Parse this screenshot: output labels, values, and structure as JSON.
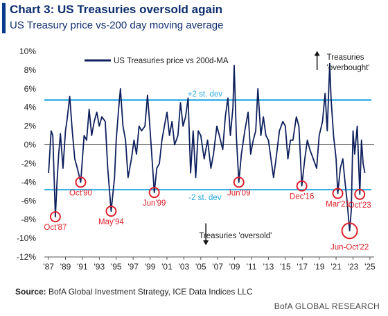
{
  "header": {
    "title": "Chart 3: US Treasuries oversold again",
    "subtitle": "US Treasury price vs-200 day moving average"
  },
  "footer": {
    "source_label": "Source:",
    "source_text": "BofA Global Investment Strategy, ICE Data Indices LLC",
    "brand": "BofA GLOBAL RESEARCH"
  },
  "colors": {
    "series": "#0d1f5c",
    "band": "#29a9e1",
    "marker": "#e0202a",
    "zero": "#333333"
  },
  "chart_data": {
    "type": "line",
    "xlabel": "",
    "ylabel": "",
    "xlim": [
      1986.5,
      2025.5
    ],
    "ylim": [
      -12,
      10
    ],
    "y_ticks": [
      10,
      8,
      6,
      4,
      2,
      0,
      -2,
      -4,
      -6,
      -8,
      -10,
      -12
    ],
    "y_tick_labels": [
      "10%",
      "8%",
      "6%",
      "4%",
      "2%",
      "0%",
      "-2%",
      "-4%",
      "-6%",
      "-8%",
      "-10%",
      "-12%"
    ],
    "x_ticks": [
      1987,
      1989,
      1991,
      1993,
      1995,
      1997,
      1999,
      2001,
      2003,
      2005,
      2007,
      2009,
      2011,
      2013,
      2015,
      2017,
      2019,
      2021,
      2023,
      2025
    ],
    "x_tick_labels": [
      "'87",
      "'89",
      "'91",
      "'93",
      "'95",
      "'97",
      "'99",
      "'01",
      "'03",
      "'05",
      "'07",
      "'09",
      "'11",
      "'13",
      "'15",
      "'17",
      "'19",
      "'21",
      "'23",
      "'25"
    ],
    "legend": {
      "label": "US Treasuries price vs 200d-MA",
      "position": "top-left"
    },
    "bands": [
      {
        "value": 4.8,
        "label": "+2 st. dev"
      },
      {
        "value": -4.8,
        "label": "-2 st. dev"
      }
    ],
    "annotations": [
      {
        "text": "Treasuries",
        "x": 2019.9,
        "y": 9.4
      },
      {
        "text": "'overbought'",
        "x": 2019.9,
        "y": 8.3
      },
      {
        "text": "Treasuries 'oversold'",
        "x": 2009.1,
        "y": -9.7
      }
    ],
    "markers": [
      {
        "label": "Oct'87",
        "x": 1987.8,
        "y": -7.7
      },
      {
        "label": "Oct'90",
        "x": 1990.8,
        "y": -4.0
      },
      {
        "label": "May'94",
        "x": 1994.4,
        "y": -7.1
      },
      {
        "label": "Jun'99",
        "x": 1999.5,
        "y": -5.1
      },
      {
        "label": "Jun'09",
        "x": 2009.5,
        "y": -4.0
      },
      {
        "label": "Dec'16",
        "x": 2016.95,
        "y": -4.4
      },
      {
        "label": "Mar'21",
        "x": 2021.2,
        "y": -5.2
      },
      {
        "label": "Jun-Oct'22",
        "x": 2022.6,
        "y": -9.2
      },
      {
        "label": "Oct'23",
        "x": 2023.8,
        "y": -5.3
      }
    ],
    "series": [
      {
        "name": "US Treasuries price vs 200d-MA",
        "x": [
          1987.0,
          1987.3,
          1987.5,
          1987.8,
          1988.0,
          1988.2,
          1988.4,
          1988.7,
          1989.0,
          1989.2,
          1989.5,
          1989.8,
          1990.1,
          1990.4,
          1990.8,
          1991.2,
          1991.5,
          1991.8,
          1992.1,
          1992.4,
          1992.7,
          1993.0,
          1993.3,
          1993.7,
          1994.0,
          1994.4,
          1994.8,
          1995.0,
          1995.3,
          1995.5,
          1995.8,
          1996.1,
          1996.4,
          1996.8,
          1997.1,
          1997.4,
          1997.7,
          1998.0,
          1998.4,
          1998.7,
          1998.9,
          1999.2,
          1999.5,
          1999.8,
          2000.1,
          2000.4,
          2000.7,
          2001.0,
          2001.3,
          2001.6,
          2001.9,
          2002.3,
          2002.6,
          2002.9,
          2003.2,
          2003.5,
          2003.8,
          2004.1,
          2004.4,
          2004.7,
          2005.0,
          2005.4,
          2005.8,
          2006.2,
          2006.5,
          2006.9,
          2007.2,
          2007.6,
          2007.9,
          2008.2,
          2008.5,
          2008.8,
          2008.95,
          2009.2,
          2009.5,
          2009.8,
          2010.2,
          2010.6,
          2010.9,
          2011.2,
          2011.5,
          2011.75,
          2012.1,
          2012.4,
          2012.7,
          2013.0,
          2013.3,
          2013.6,
          2013.9,
          2014.3,
          2014.7,
          2015.0,
          2015.3,
          2015.6,
          2015.9,
          2016.3,
          2016.6,
          2016.95,
          2017.3,
          2017.6,
          2017.9,
          2018.3,
          2018.7,
          2019.0,
          2019.4,
          2019.7,
          2019.95,
          2020.25,
          2020.4,
          2020.7,
          2021.0,
          2021.2,
          2021.5,
          2021.8,
          2022.0,
          2022.3,
          2022.6,
          2022.8,
          2023.0,
          2023.2,
          2023.5,
          2023.8,
          2024.0,
          2024.2,
          2024.4
        ],
        "y": [
          -3.0,
          1.5,
          1.0,
          -7.7,
          -4.0,
          -1.0,
          1.2,
          -2.5,
          1.5,
          2.8,
          5.2,
          1.5,
          -1.5,
          -2.5,
          -4.0,
          1.0,
          0.5,
          3.8,
          1.0,
          2.5,
          3.5,
          2.0,
          3.0,
          2.5,
          -2.5,
          -7.1,
          -3.5,
          0.5,
          4.0,
          6.0,
          2.0,
          0.5,
          -3.5,
          -1.5,
          0.5,
          -1.0,
          2.0,
          1.5,
          2.0,
          5.3,
          3.0,
          -1.0,
          -5.1,
          -2.5,
          -2.0,
          0.5,
          2.0,
          3.5,
          1.0,
          2.5,
          0.0,
          1.0,
          4.5,
          2.0,
          3.0,
          5.0,
          -3.0,
          1.5,
          -3.5,
          1.5,
          1.0,
          -1.5,
          0.5,
          -2.5,
          -1.0,
          2.0,
          1.0,
          -0.5,
          3.0,
          5.0,
          1.0,
          4.0,
          8.5,
          1.0,
          -4.0,
          -1.0,
          1.5,
          3.5,
          -1.0,
          0.5,
          1.5,
          6.0,
          1.0,
          3.0,
          1.0,
          0.5,
          -1.5,
          -3.5,
          -1.5,
          1.5,
          2.5,
          2.0,
          -1.5,
          0.5,
          0.5,
          3.0,
          2.0,
          -4.4,
          -1.5,
          0.5,
          -0.5,
          -1.5,
          -2.5,
          1.0,
          2.5,
          5.5,
          1.5,
          8.7,
          5.0,
          1.0,
          -1.5,
          -5.2,
          -2.5,
          -1.5,
          -3.5,
          -6.0,
          -9.2,
          -7.0,
          1.5,
          -1.0,
          2.0,
          -5.3,
          0.5,
          -2.0,
          -3.0
        ]
      }
    ]
  }
}
